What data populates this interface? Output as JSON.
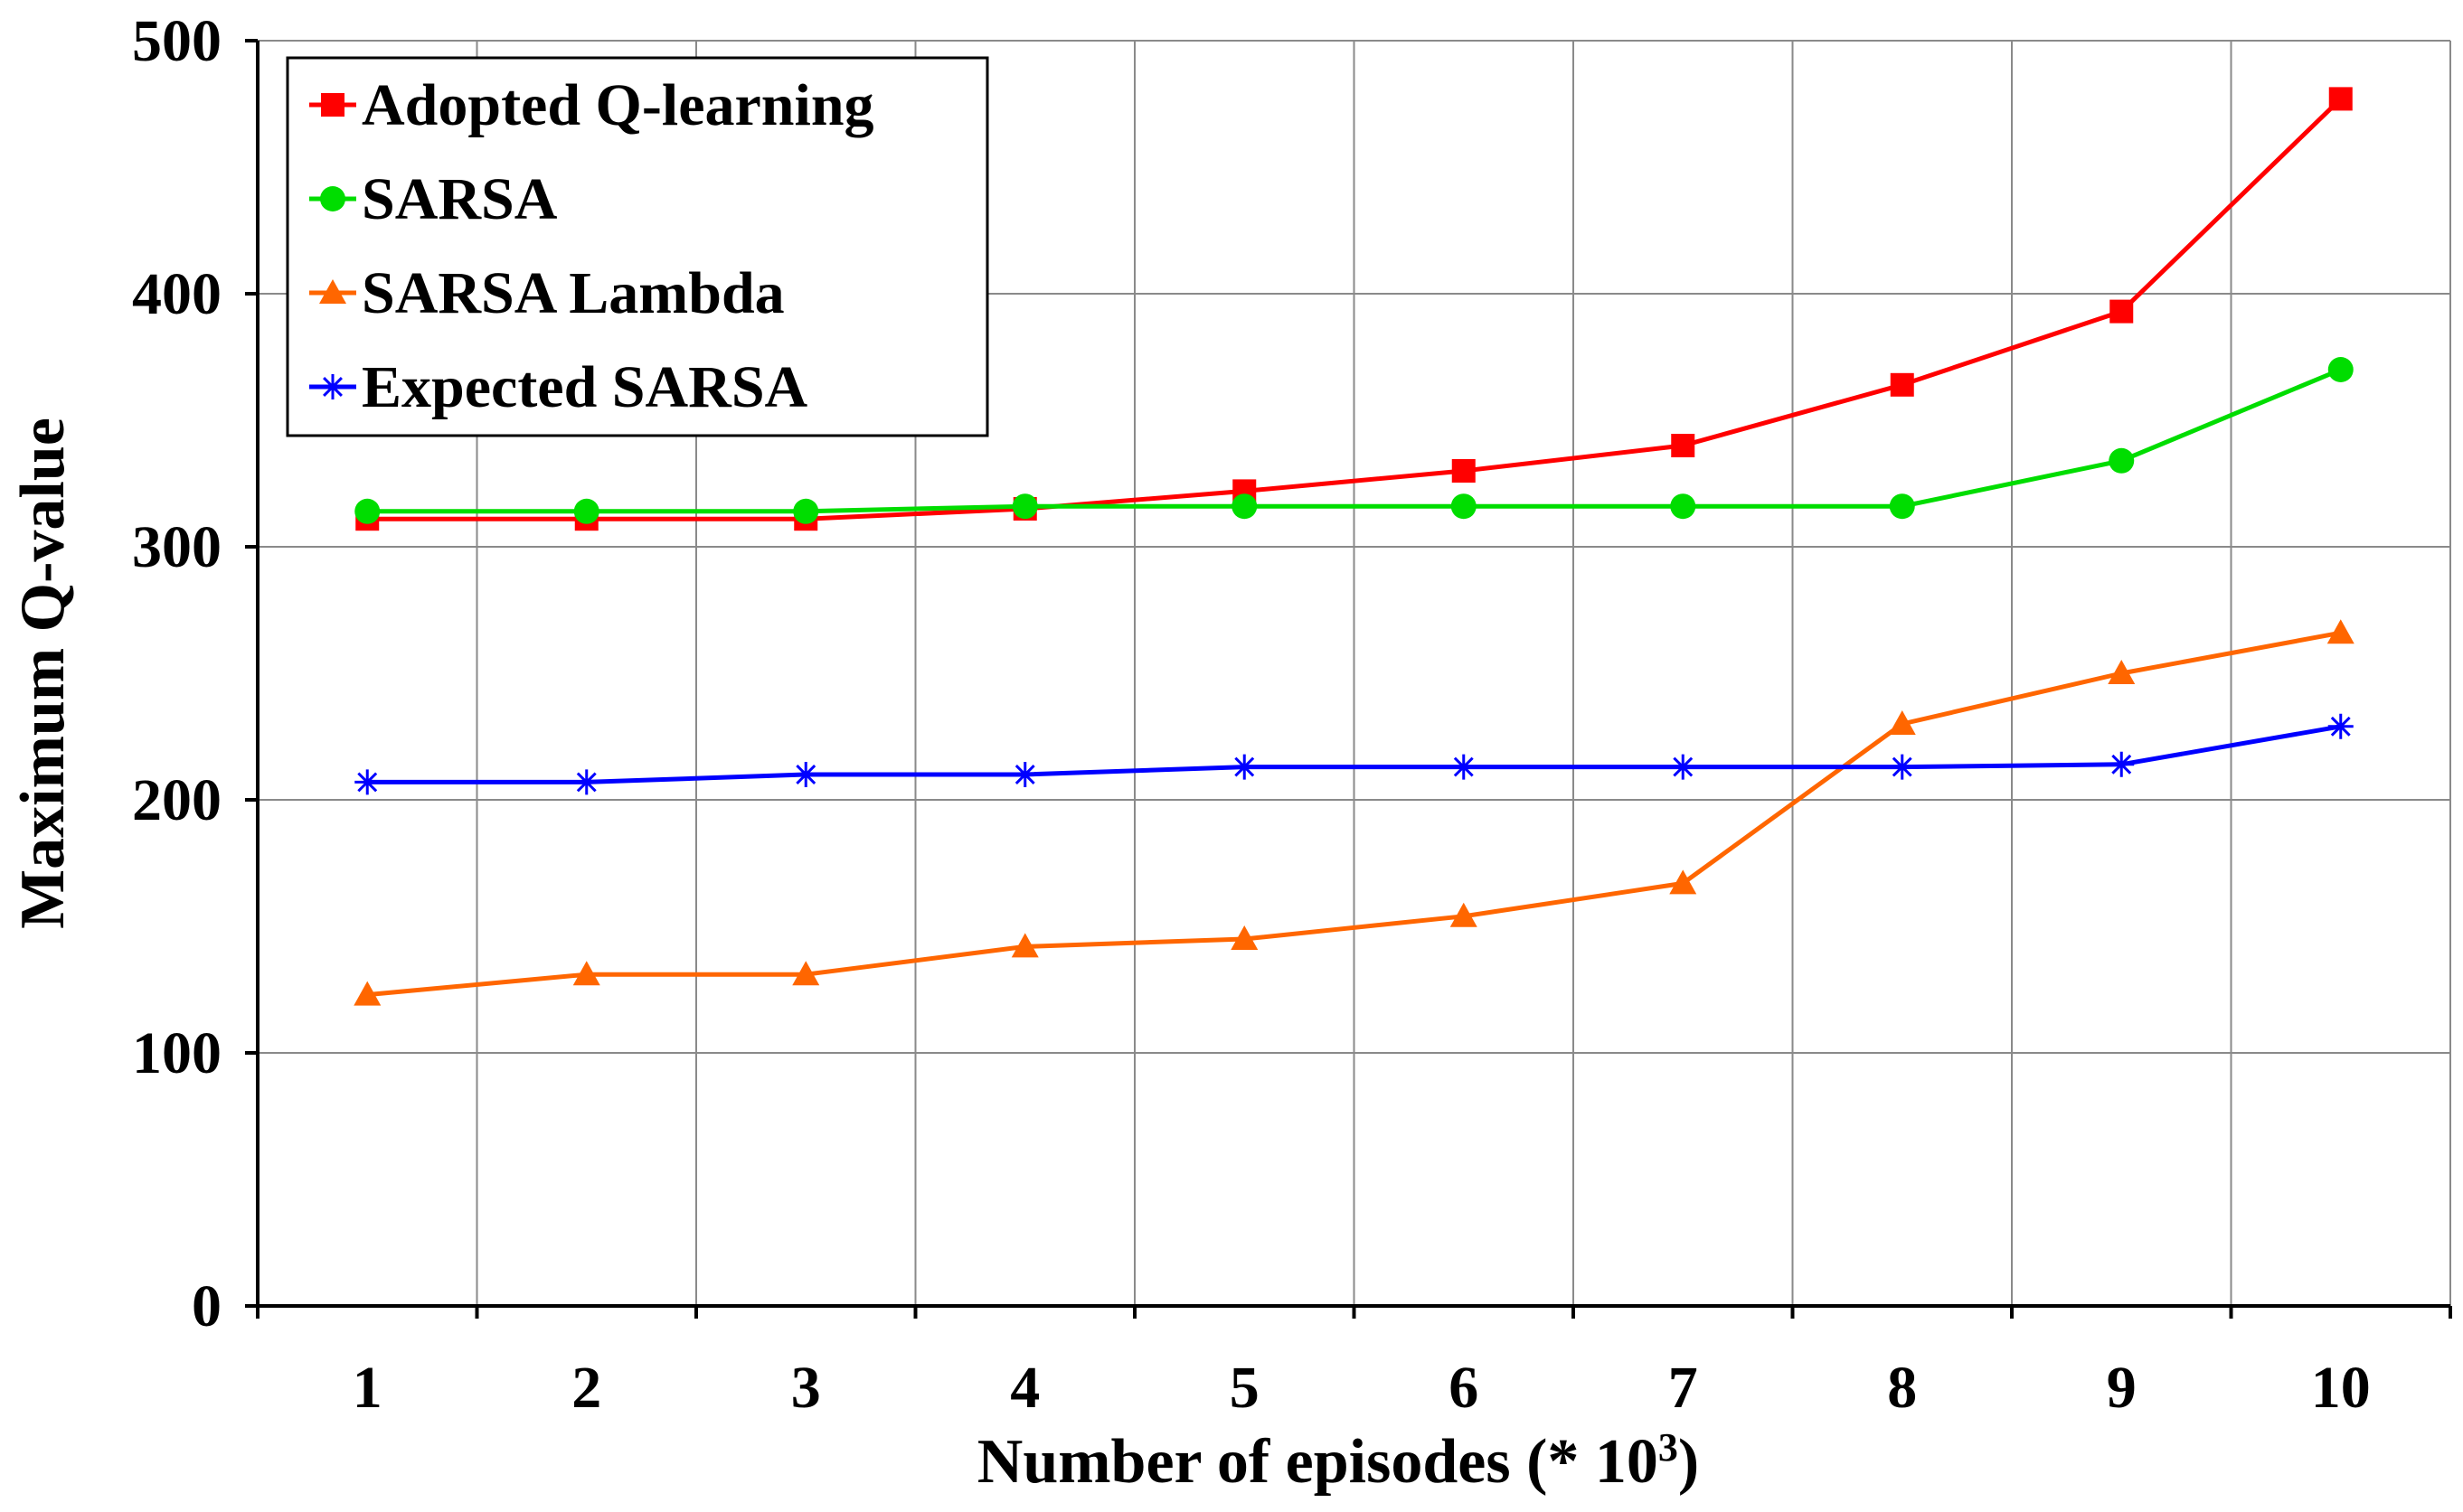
{
  "chart_data": {
    "type": "line",
    "x": [
      1,
      2,
      3,
      4,
      5,
      6,
      7,
      8,
      9,
      10
    ],
    "xlabel": "Number of episodes (* 10",
    "xlabel_superscript": "3",
    "xlabel_suffix": ")",
    "ylabel": "Maximum Q-value",
    "ylim": [
      0,
      500
    ],
    "yticks": [
      0,
      100,
      200,
      300,
      400,
      500
    ],
    "grid": true,
    "legend_position": "top-left",
    "series": [
      {
        "name": "Adopted Q-learning",
        "color": "#ff0000",
        "marker": "square",
        "values": [
          311,
          311,
          311,
          315,
          322,
          330,
          340,
          364,
          393,
          477
        ]
      },
      {
        "name": "SARSA",
        "color": "#00dd00",
        "marker": "circle",
        "values": [
          314,
          314,
          314,
          316,
          316,
          316,
          316,
          316,
          334,
          370
        ]
      },
      {
        "name": "SARSA Lambda",
        "color": "#ff6600",
        "marker": "triangle",
        "values": [
          123,
          131,
          131,
          142,
          145,
          154,
          167,
          230,
          250,
          266
        ]
      },
      {
        "name": "Expected SARSA",
        "color": "#0000ff",
        "marker": "asterisk",
        "values": [
          207,
          207,
          210,
          210,
          213,
          213,
          213,
          213,
          214,
          229
        ]
      }
    ]
  }
}
